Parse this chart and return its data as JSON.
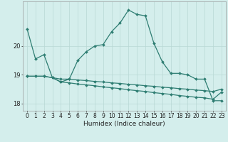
{
  "xlabel": "Humidex (Indice chaleur)",
  "x_hours": [
    0,
    1,
    2,
    3,
    4,
    5,
    6,
    7,
    8,
    9,
    10,
    11,
    12,
    13,
    14,
    15,
    16,
    17,
    18,
    19,
    20,
    21,
    22,
    23
  ],
  "line1": [
    20.6,
    19.55,
    19.7,
    18.9,
    18.75,
    18.85,
    19.5,
    19.8,
    20.0,
    20.05,
    20.5,
    20.8,
    21.25,
    21.1,
    21.05,
    20.1,
    19.45,
    19.05,
    19.05,
    19.0,
    18.85,
    18.85,
    18.1,
    18.1
  ],
  "line2": [
    18.95,
    18.95,
    18.95,
    18.9,
    18.85,
    18.85,
    18.82,
    18.8,
    18.77,
    18.75,
    18.72,
    18.7,
    18.67,
    18.65,
    18.62,
    18.6,
    18.57,
    18.55,
    18.52,
    18.5,
    18.47,
    18.45,
    18.42,
    18.5
  ],
  "line3": [
    18.95,
    18.95,
    18.95,
    18.9,
    18.75,
    18.72,
    18.68,
    18.65,
    18.62,
    18.58,
    18.55,
    18.52,
    18.48,
    18.45,
    18.42,
    18.38,
    18.35,
    18.32,
    18.28,
    18.25,
    18.22,
    18.2,
    18.15,
    18.4
  ],
  "ylim": [
    17.75,
    21.55
  ],
  "yticks": [
    18,
    19,
    20
  ],
  "bg_color": "#d4eeec",
  "grid_color": "#b8d8d4",
  "line_color": "#2e7d72",
  "markersize": 2.0,
  "linewidth": 0.9,
  "tick_fontsize": 5.5,
  "xlabel_fontsize": 6.5
}
